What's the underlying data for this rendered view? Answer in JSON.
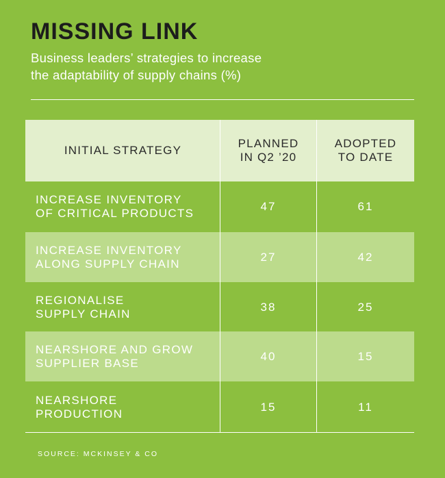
{
  "chart_data": {
    "type": "table",
    "title": "MISSING LINK",
    "subtitle_lines": [
      "Business leaders’ strategies to increase",
      "the adaptability of supply chains (%)"
    ],
    "columns": [
      {
        "label_lines": [
          "INITIAL STRATEGY"
        ]
      },
      {
        "label_lines": [
          "PLANNED",
          "IN Q2 ’20"
        ]
      },
      {
        "label_lines": [
          "ADOPTED",
          "TO DATE"
        ]
      }
    ],
    "rows": [
      {
        "strategy_lines": [
          "INCREASE INVENTORY",
          "OF CRITICAL PRODUCTS"
        ],
        "planned": "47",
        "adopted": "61"
      },
      {
        "strategy_lines": [
          "INCREASE INVENTORY",
          "ALONG SUPPLY CHAIN"
        ],
        "planned": "27",
        "adopted": "42"
      },
      {
        "strategy_lines": [
          "REGIONALISE",
          "SUPPLY CHAIN"
        ],
        "planned": "38",
        "adopted": "25"
      },
      {
        "strategy_lines": [
          "NEARSHORE AND GROW",
          "SUPPLIER BASE"
        ],
        "planned": "40",
        "adopted": "15"
      },
      {
        "strategy_lines": [
          "NEARSHORE",
          "PRODUCTION"
        ],
        "planned": "15",
        "adopted": "11"
      }
    ],
    "source": "SOURCE: MCKINSEY & CO"
  },
  "colors": {
    "background": "#8cbf3f",
    "header_fill": "#e3efcd",
    "alt_row_fill": "#bcdb8c",
    "title_text": "#1c1c1c",
    "body_text": "#ffffff"
  }
}
